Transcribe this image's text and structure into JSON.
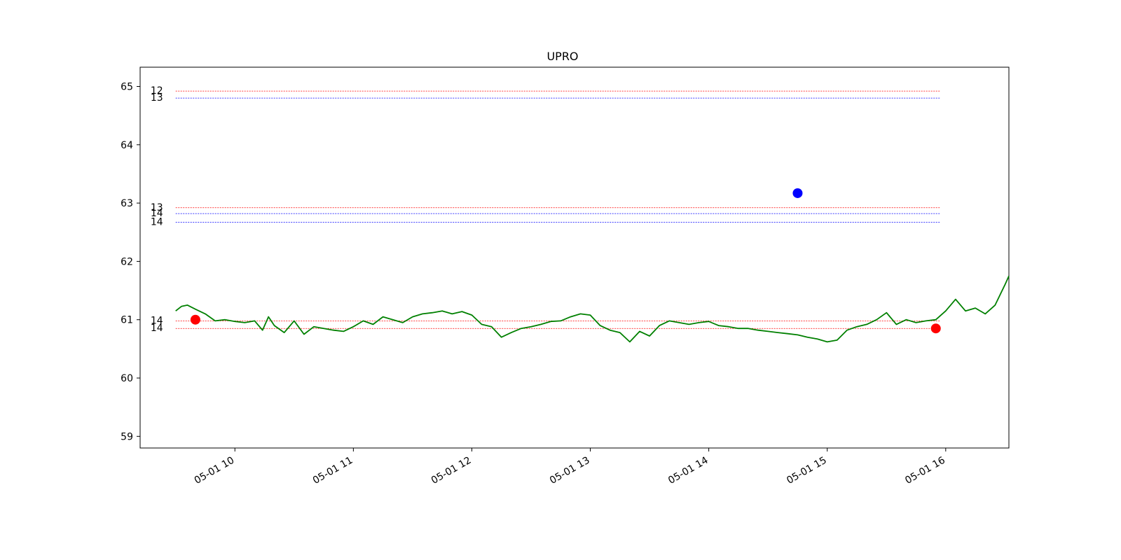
{
  "chart_data": {
    "type": "line",
    "title": "UPRO",
    "xlabel": "",
    "ylabel": "",
    "xlim": [
      "05-01 09:12",
      "05-01 16:32"
    ],
    "ylim": [
      58.8,
      65.33
    ],
    "y_ticks": [
      59,
      60,
      61,
      62,
      63,
      64,
      65
    ],
    "y_tick_labels": [
      "59",
      "60",
      "61",
      "62",
      "63",
      "64",
      "65"
    ],
    "x_ticks": [
      "05-01 10:00",
      "05-01 11:00",
      "05-01 12:00",
      "05-01 13:00",
      "05-01 14:00",
      "05-01 15:00",
      "05-01 16:00"
    ],
    "x_tick_labels": [
      "05-01 10",
      "05-01 11",
      "05-01 12",
      "05-01 13",
      "05-01 14",
      "05-01 15",
      "05-01 16"
    ],
    "grid": false,
    "series": [
      {
        "color": "#008000",
        "points": [
          [
            "05-01 09:30",
            61.15
          ],
          [
            "05-01 09:33",
            61.23
          ],
          [
            "05-01 09:36",
            61.25
          ],
          [
            "05-01 09:40",
            61.18
          ],
          [
            "05-01 09:45",
            61.1
          ],
          [
            "05-01 09:50",
            60.98
          ],
          [
            "05-01 09:55",
            61.0
          ],
          [
            "05-01 10:00",
            60.97
          ],
          [
            "05-01 10:05",
            60.95
          ],
          [
            "05-01 10:10",
            60.98
          ],
          [
            "05-01 10:14",
            60.82
          ],
          [
            "05-01 10:17",
            61.05
          ],
          [
            "05-01 10:20",
            60.9
          ],
          [
            "05-01 10:25",
            60.78
          ],
          [
            "05-01 10:30",
            60.98
          ],
          [
            "05-01 10:35",
            60.75
          ],
          [
            "05-01 10:40",
            60.88
          ],
          [
            "05-01 10:45",
            60.85
          ],
          [
            "05-01 10:50",
            60.82
          ],
          [
            "05-01 10:55",
            60.8
          ],
          [
            "05-01 11:00",
            60.88
          ],
          [
            "05-01 11:05",
            60.98
          ],
          [
            "05-01 11:10",
            60.92
          ],
          [
            "05-01 11:15",
            61.05
          ],
          [
            "05-01 11:20",
            61.0
          ],
          [
            "05-01 11:25",
            60.95
          ],
          [
            "05-01 11:30",
            61.05
          ],
          [
            "05-01 11:35",
            61.1
          ],
          [
            "05-01 11:40",
            61.12
          ],
          [
            "05-01 11:45",
            61.15
          ],
          [
            "05-01 11:50",
            61.1
          ],
          [
            "05-01 11:55",
            61.14
          ],
          [
            "05-01 12:00",
            61.08
          ],
          [
            "05-01 12:05",
            60.92
          ],
          [
            "05-01 12:10",
            60.88
          ],
          [
            "05-01 12:15",
            60.7
          ],
          [
            "05-01 12:20",
            60.78
          ],
          [
            "05-01 12:25",
            60.85
          ],
          [
            "05-01 12:30",
            60.88
          ],
          [
            "05-01 12:35",
            60.92
          ],
          [
            "05-01 12:40",
            60.97
          ],
          [
            "05-01 12:45",
            60.98
          ],
          [
            "05-01 12:50",
            61.05
          ],
          [
            "05-01 12:55",
            61.1
          ],
          [
            "05-01 13:00",
            61.08
          ],
          [
            "05-01 13:05",
            60.9
          ],
          [
            "05-01 13:10",
            60.82
          ],
          [
            "05-01 13:15",
            60.78
          ],
          [
            "05-01 13:20",
            60.62
          ],
          [
            "05-01 13:25",
            60.8
          ],
          [
            "05-01 13:30",
            60.72
          ],
          [
            "05-01 13:35",
            60.9
          ],
          [
            "05-01 13:40",
            60.98
          ],
          [
            "05-01 13:45",
            60.95
          ],
          [
            "05-01 13:50",
            60.92
          ],
          [
            "05-01 13:55",
            60.95
          ],
          [
            "05-01 14:00",
            60.97
          ],
          [
            "05-01 14:05",
            60.9
          ],
          [
            "05-01 14:10",
            60.88
          ],
          [
            "05-01 14:15",
            60.85
          ],
          [
            "05-01 14:20",
            60.85
          ],
          [
            "05-01 14:25",
            60.82
          ],
          [
            "05-01 14:30",
            60.8
          ],
          [
            "05-01 14:35",
            60.78
          ],
          [
            "05-01 14:40",
            60.76
          ],
          [
            "05-01 14:45",
            60.74
          ],
          [
            "05-01 14:50",
            60.7
          ],
          [
            "05-01 14:55",
            60.67
          ],
          [
            "05-01 15:00",
            60.62
          ],
          [
            "05-01 15:05",
            60.65
          ],
          [
            "05-01 15:10",
            60.82
          ],
          [
            "05-01 15:15",
            60.88
          ],
          [
            "05-01 15:20",
            60.92
          ],
          [
            "05-01 15:25",
            61.0
          ],
          [
            "05-01 15:30",
            61.12
          ],
          [
            "05-01 15:35",
            60.92
          ],
          [
            "05-01 15:40",
            61.0
          ],
          [
            "05-01 15:45",
            60.95
          ],
          [
            "05-01 15:50",
            60.98
          ],
          [
            "05-01 15:55",
            61.0
          ],
          [
            "05-01 16:00",
            61.15
          ],
          [
            "05-01 16:05",
            61.35
          ],
          [
            "05-01 16:10",
            61.15
          ],
          [
            "05-01 16:15",
            61.2
          ],
          [
            "05-01 16:20",
            61.1
          ],
          [
            "05-01 16:25",
            61.25
          ],
          [
            "05-01 16:30",
            61.6
          ],
          [
            "05-01 16:32",
            61.75
          ]
        ]
      }
    ],
    "markers": [
      {
        "x": "05-01 09:40",
        "y": 61.0,
        "color": "#ff0000"
      },
      {
        "x": "05-01 14:45",
        "y": 63.17,
        "color": "#0000ff"
      },
      {
        "x": "05-01 15:55",
        "y": 60.85,
        "color": "#ff0000"
      }
    ],
    "horizontal_lines": [
      {
        "y": 64.92,
        "label": "12",
        "color": "#ff0000"
      },
      {
        "y": 64.8,
        "label": "13",
        "color": "#0000ff"
      },
      {
        "y": 62.92,
        "label": "13",
        "color": "#ff0000"
      },
      {
        "y": 62.82,
        "label": "14",
        "color": "#0000ff"
      },
      {
        "y": 62.67,
        "label": "14",
        "color": "#0000ff"
      },
      {
        "y": 60.98,
        "label": "14",
        "color": "#ff0000"
      },
      {
        "y": 60.85,
        "label": "14",
        "color": "#ff0000"
      }
    ]
  }
}
